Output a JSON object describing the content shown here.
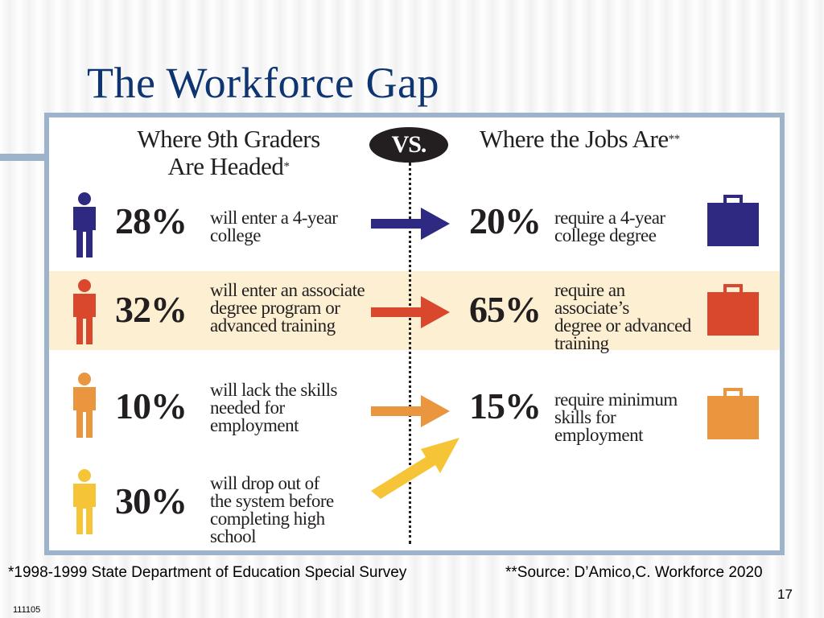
{
  "title": "The Workforce Gap",
  "left_heading": {
    "line1": "Where 9th Graders",
    "line2": "Are Headed",
    "mark": "*"
  },
  "right_heading": {
    "text": "Where the Jobs Are",
    "mark": "**"
  },
  "vs_label": "VS.",
  "rows": [
    {
      "color": "#2e2a82",
      "left_pct": "28%",
      "left_text": [
        "will enter a 4-year",
        "college"
      ],
      "right_pct": "20%",
      "right_text": [
        "require a 4-year",
        "college degree"
      ]
    },
    {
      "color": "#d9472c",
      "left_pct": "32%",
      "left_text": [
        "will enter an associate",
        "degree program or",
        "advanced training"
      ],
      "right_pct": "65%",
      "right_text": [
        "require an associate’s",
        "degree or advanced",
        "training"
      ]
    },
    {
      "color": "#e9963f",
      "left_pct": "10%",
      "left_text": [
        "will lack the skills",
        "needed for",
        "employment"
      ],
      "right_pct": "15%",
      "right_text": [
        "require minimum",
        "skills for",
        "employment"
      ]
    },
    {
      "color": "#f6c437",
      "left_pct": "30%",
      "left_text": [
        "will drop out of",
        "the system before",
        "completing high",
        "school"
      ]
    }
  ],
  "footnotes": {
    "left": "*1998-1999 State Department of Education Special Survey",
    "right": "**Source: D’Amico,C. Workforce 2020"
  },
  "page_number": "17",
  "slide_code": "111105"
}
